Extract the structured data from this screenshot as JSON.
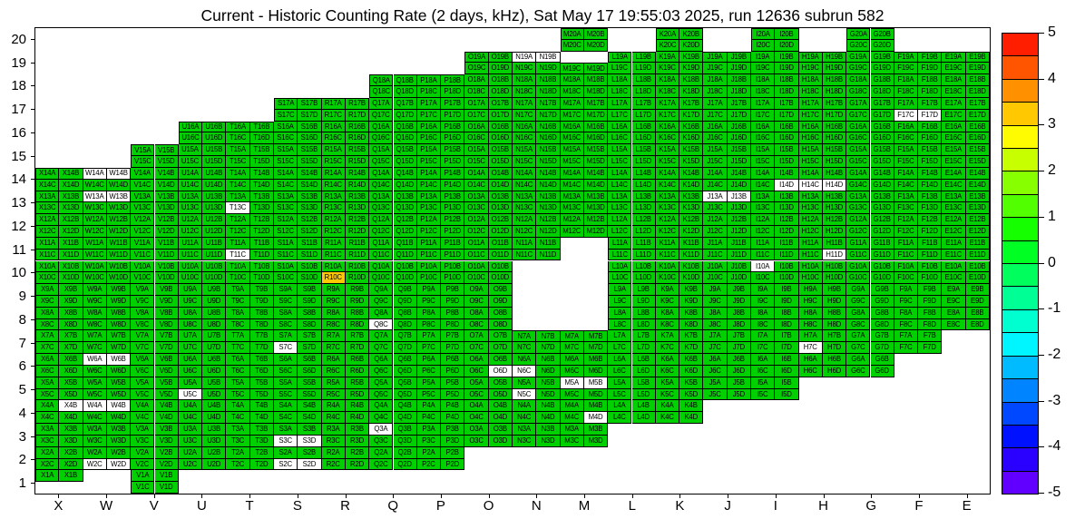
{
  "title": "Current - Historic Counting Rate (2 days, kHz), Sat May 17 19:55:03 2025, run 12636 subrun 582",
  "chart_data": {
    "type": "heatmap",
    "x_categories": [
      "X",
      "W",
      "V",
      "U",
      "T",
      "S",
      "R",
      "Q",
      "P",
      "O",
      "N",
      "M",
      "L",
      "K",
      "J",
      "I",
      "H",
      "G",
      "F",
      "E"
    ],
    "y_categories": [
      "20",
      "19",
      "18",
      "17",
      "16",
      "15",
      "14",
      "13",
      "12",
      "11",
      "10",
      "9",
      "8",
      "7",
      "6",
      "5",
      "4",
      "3",
      "2",
      "1"
    ],
    "subcell_letters": [
      "A",
      "B",
      "C",
      "D"
    ],
    "value_scale": {
      "min": -5,
      "max": 5,
      "units": "kHz (current - historic)"
    },
    "default_cell_value": 0,
    "value_color_zero": "#00cf00",
    "row_columns_present": {
      "20": [
        "M",
        "K",
        "I",
        "G"
      ],
      "19": [
        "O",
        "N",
        "M",
        "L",
        "K",
        "J",
        "I",
        "H",
        "G",
        "F",
        "E"
      ],
      "18": [
        "Q",
        "P",
        "O",
        "N",
        "M",
        "L",
        "K",
        "J",
        "I",
        "H",
        "G",
        "F",
        "E"
      ],
      "17": [
        "S",
        "R",
        "Q",
        "P",
        "O",
        "N",
        "M",
        "L",
        "K",
        "J",
        "I",
        "H",
        "G",
        "F",
        "E"
      ],
      "16": [
        "U",
        "T",
        "S",
        "R",
        "Q",
        "P",
        "O",
        "N",
        "M",
        "L",
        "K",
        "J",
        "I",
        "H",
        "G",
        "F",
        "E"
      ],
      "15": [
        "V",
        "U",
        "T",
        "S",
        "R",
        "Q",
        "P",
        "O",
        "N",
        "M",
        "L",
        "K",
        "J",
        "I",
        "H",
        "G",
        "F",
        "E"
      ],
      "14": [
        "X",
        "W",
        "V",
        "U",
        "T",
        "S",
        "R",
        "Q",
        "P",
        "O",
        "N",
        "M",
        "L",
        "K",
        "J",
        "I",
        "H",
        "G",
        "F",
        "E"
      ],
      "13": [
        "X",
        "W",
        "V",
        "U",
        "T",
        "S",
        "R",
        "Q",
        "P",
        "O",
        "N",
        "M",
        "L",
        "K",
        "J",
        "I",
        "H",
        "G",
        "F",
        "E"
      ],
      "12": [
        "X",
        "W",
        "V",
        "U",
        "T",
        "S",
        "R",
        "Q",
        "P",
        "O",
        "N",
        "M",
        "L",
        "K",
        "J",
        "I",
        "H",
        "G",
        "F",
        "E"
      ],
      "11": [
        "X",
        "W",
        "V",
        "U",
        "T",
        "S",
        "R",
        "Q",
        "P",
        "O",
        "N",
        "L",
        "K",
        "J",
        "I",
        "H",
        "G",
        "F",
        "E"
      ],
      "10": [
        "X",
        "W",
        "V",
        "U",
        "T",
        "S",
        "R",
        "Q",
        "P",
        "O",
        "L",
        "K",
        "J",
        "I",
        "H",
        "G",
        "F",
        "E"
      ],
      "9": [
        "X",
        "W",
        "V",
        "U",
        "T",
        "S",
        "R",
        "Q",
        "P",
        "O",
        "L",
        "K",
        "J",
        "I",
        "H",
        "G",
        "F",
        "E"
      ],
      "8": [
        "X",
        "W",
        "V",
        "U",
        "T",
        "S",
        "R",
        "Q",
        "P",
        "O",
        "L",
        "K",
        "J",
        "I",
        "H",
        "G",
        "F",
        "E"
      ],
      "7": [
        "X",
        "W",
        "V",
        "U",
        "T",
        "S",
        "R",
        "Q",
        "P",
        "O",
        "N",
        "M",
        "L",
        "K",
        "J",
        "I",
        "H",
        "G",
        "F"
      ],
      "6": [
        "X",
        "W",
        "V",
        "U",
        "T",
        "S",
        "R",
        "Q",
        "P",
        "O",
        "N",
        "M",
        "L",
        "K",
        "J",
        "I",
        "H",
        "G"
      ],
      "5": [
        "X",
        "W",
        "V",
        "U",
        "T",
        "S",
        "R",
        "Q",
        "P",
        "O",
        "N",
        "M",
        "L",
        "K",
        "J",
        "I"
      ],
      "4": [
        "X",
        "W",
        "V",
        "U",
        "T",
        "S",
        "R",
        "Q",
        "P",
        "O",
        "N",
        "M",
        "L",
        "K"
      ],
      "3": [
        "X",
        "W",
        "V",
        "U",
        "T",
        "S",
        "R",
        "Q",
        "P",
        "O",
        "N",
        "M"
      ],
      "2": [
        "X",
        "W",
        "V",
        "U",
        "T",
        "S",
        "R",
        "Q",
        "P"
      ],
      "1": [
        "X",
        "V"
      ]
    },
    "absent_subcells": [
      "M19A",
      "M19B",
      "X1C",
      "X1D"
    ],
    "white_subcells": [
      "N19A",
      "N19B",
      "F17C",
      "F17D",
      "W14A",
      "W14B",
      "I14D",
      "H14C",
      "H14D",
      "W13A",
      "W13B",
      "T13C",
      "J13A",
      "J13B",
      "T11C",
      "H11D",
      "I10A",
      "Q8C",
      "S7C",
      "H7C",
      "W6A",
      "W6B",
      "N6C",
      "O6D",
      "N5C",
      "M5A",
      "M5B",
      "U5C",
      "X4B",
      "W4A",
      "W4B",
      "M4D",
      "Q3A",
      "S3C",
      "S3D",
      "W2C",
      "W2D",
      "S2C",
      "S2D"
    ],
    "colored_subcells": {
      "R10C": "#ffc800"
    },
    "colorbar": {
      "min": -5,
      "max": 5,
      "tick_labels": [
        "5",
        "4",
        "3",
        "2",
        "1",
        "0",
        "-1",
        "-2",
        "-3",
        "-4",
        "-5"
      ],
      "band_colors_top_to_bottom": [
        "#ff1e00",
        "#ff5500",
        "#ff9100",
        "#ffc800",
        "#fffb00",
        "#c8ff00",
        "#88ff00",
        "#51ff00",
        "#15ff00",
        "#00ff22",
        "#00ff5d",
        "#00ff95",
        "#00ffd0",
        "#00f6ff",
        "#00bbff",
        "#0084ff",
        "#0048ff",
        "#0011ff",
        "#2a00ff",
        "#6200ff"
      ]
    },
    "grid_line_color": "#000000",
    "background_color": "#ffffff"
  }
}
